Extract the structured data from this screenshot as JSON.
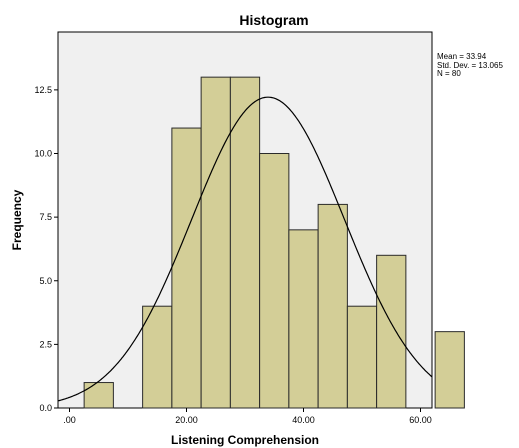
{
  "chart_data": {
    "type": "histogram",
    "title": "Histogram",
    "xlabel": "Listening Comprehension",
    "ylabel": "Frequency",
    "xlim": [
      -2.5,
      75
    ],
    "ylim": [
      0,
      15
    ],
    "bin_width": 5,
    "bins": [
      {
        "start": 2.5,
        "end": 7.5,
        "count": 1
      },
      {
        "start": 12.5,
        "end": 17.5,
        "count": 4
      },
      {
        "start": 17.5,
        "end": 22.5,
        "count": 11
      },
      {
        "start": 22.5,
        "end": 27.5,
        "count": 13
      },
      {
        "start": 27.5,
        "end": 32.5,
        "count": 13
      },
      {
        "start": 32.5,
        "end": 37.5,
        "count": 10
      },
      {
        "start": 37.5,
        "end": 42.5,
        "count": 7
      },
      {
        "start": 42.5,
        "end": 47.5,
        "count": 8
      },
      {
        "start": 47.5,
        "end": 52.5,
        "count": 4
      },
      {
        "start": 52.5,
        "end": 57.5,
        "count": 6
      },
      {
        "start": 62.5,
        "end": 67.5,
        "count": 3
      }
    ],
    "x_ticks": [
      {
        "value": 0,
        "label": ".00"
      },
      {
        "value": 20,
        "label": "20.00"
      },
      {
        "value": 40,
        "label": "40.00"
      },
      {
        "value": 60,
        "label": "60.00"
      }
    ],
    "y_ticks": [
      {
        "value": 0,
        "label": "0.0"
      },
      {
        "value": 2.5,
        "label": "2.5"
      },
      {
        "value": 5,
        "label": "5.0"
      },
      {
        "value": 7.5,
        "label": "7.5"
      },
      {
        "value": 10,
        "label": "10.0"
      },
      {
        "value": 12.5,
        "label": "12.5"
      }
    ],
    "normal_curve": {
      "mean": 33.94,
      "sd": 13.065,
      "n": 80
    },
    "stats_box": [
      "Mean = 33.94",
      "Std. Dev. = 13.065",
      "N = 80"
    ],
    "colors": {
      "plot_background": "#f0f0f0",
      "bar_fill": "#d3ce97",
      "bar_stroke": "#2a2a2a",
      "curve": "#000000"
    }
  }
}
